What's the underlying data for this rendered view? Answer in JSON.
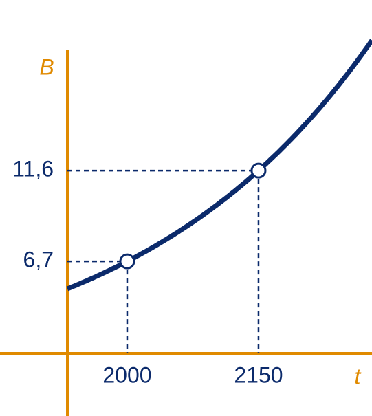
{
  "chart_data": {
    "type": "curve",
    "x_label": "t",
    "y_label": "B",
    "x": [
      2000,
      2150
    ],
    "values": [
      6.7,
      11.6
    ],
    "color": "#0b2a6b",
    "axis_color": "#e08a00",
    "xlim": [
      1931.7,
      2279.6
    ],
    "ylim": [
      1.73,
      20.81
    ],
    "xticks": [
      2000,
      2150
    ],
    "yticks": [
      {
        "value": 6.7,
        "label": "6,7"
      },
      {
        "value": 11.6,
        "label": "11,6"
      }
    ]
  }
}
